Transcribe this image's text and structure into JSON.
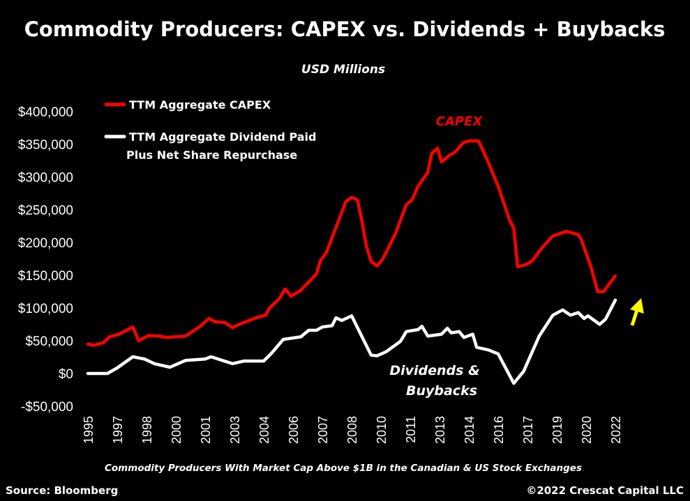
{
  "chart_data": {
    "type": "line",
    "title": "Commodity Producers: CAPEX vs. Dividends + Buybacks",
    "subtitle": "USD Millions",
    "footnote": "Commodity Producers With Market Cap Above $1B in the Canadian & US Stock Exchanges",
    "source": "Source: Bloomberg",
    "copyright": "©2022 Crescat Capital LLC",
    "xlim": [
      1995,
      2022
    ],
    "ylim": [
      -50000,
      400000
    ],
    "grid": false,
    "legend_placement": "top-left",
    "yticks": [
      {
        "value": 400000,
        "label": "$400,000"
      },
      {
        "value": 350000,
        "label": "$350,000"
      },
      {
        "value": 300000,
        "label": "$300,000"
      },
      {
        "value": 250000,
        "label": "$250,000"
      },
      {
        "value": 200000,
        "label": "$200,000"
      },
      {
        "value": 150000,
        "label": "$150,000"
      },
      {
        "value": 100000,
        "label": "$100,000"
      },
      {
        "value": 50000,
        "label": "$50,000"
      },
      {
        "value": 0,
        "label": "$0"
      },
      {
        "value": -50000,
        "label": "-$50,000"
      }
    ],
    "xtick_labels": [
      "1995",
      "1997",
      "1998",
      "2000",
      "2001",
      "2003",
      "2004",
      "2006",
      "2007",
      "2008",
      "2010",
      "2011",
      "2013",
      "2014",
      "2016",
      "2017",
      "2019",
      "2020",
      "2022"
    ],
    "annotations": {
      "capex": "CAPEX",
      "dividends_line1": "Dividends &",
      "dividends_line2": "Buybacks"
    },
    "arrow_color": "#FFFF00",
    "series": [
      {
        "name": "TTM Aggregate CAPEX",
        "color": "#FF0000",
        "x": [
          1995.0,
          1995.3,
          1995.8,
          1996.1,
          1996.6,
          1997.3,
          1997.6,
          1998.1,
          1998.7,
          1999.0,
          2000.0,
          2000.75,
          2001.2,
          2001.5,
          2002.0,
          2002.4,
          2002.75,
          2003.6,
          2004.1,
          2004.3,
          2004.8,
          2005.1,
          2005.4,
          2005.9,
          2006.7,
          2006.9,
          2007.2,
          2008.2,
          2008.5,
          2008.8,
          2009.0,
          2009.25,
          2009.5,
          2009.8,
          2010.1,
          2010.75,
          2011.3,
          2011.6,
          2011.9,
          2012.4,
          2012.6,
          2012.9,
          2013.1,
          2013.5,
          2013.8,
          2014.2,
          2014.5,
          2015.0,
          2015.5,
          2016.0,
          2016.6,
          2016.8,
          2017.0,
          2017.4,
          2017.75,
          2018.25,
          2018.8,
          2019.5,
          2020.1,
          2020.25,
          2020.75,
          2021.1,
          2021.4,
          2022.0
        ],
        "values": [
          45000,
          43000,
          47000,
          56000,
          60000,
          71000,
          50000,
          58000,
          57000,
          55000,
          57000,
          72000,
          84000,
          79000,
          78000,
          70000,
          75000,
          85000,
          89000,
          100000,
          114000,
          129000,
          118000,
          127000,
          152000,
          172000,
          184000,
          262000,
          269000,
          265000,
          237000,
          195000,
          171000,
          164000,
          175000,
          214000,
          258000,
          265000,
          286000,
          307000,
          336000,
          344000,
          323000,
          333000,
          338000,
          352000,
          355000,
          355000,
          322000,
          286000,
          233000,
          222000,
          163000,
          166000,
          172000,
          192000,
          210000,
          217000,
          212000,
          205000,
          163000,
          125000,
          125000,
          149000
        ]
      },
      {
        "name": "TTM Aggregate Dividend Paid Plus Net Share Repurchase",
        "name_line1": "TTM Aggregate Dividend Paid",
        "name_line2": "Plus Net Share Repurchase",
        "color": "#FFFFFF",
        "x": [
          1995.0,
          1996.0,
          1996.5,
          1997.3,
          1997.9,
          1998.4,
          1999.2,
          2000.0,
          2001.0,
          2001.3,
          2002.4,
          2003.0,
          2004.0,
          2004.4,
          2005.0,
          2005.9,
          2006.3,
          2006.7,
          2007.0,
          2007.5,
          2007.7,
          2008.0,
          2008.5,
          2008.8,
          2009.5,
          2009.8,
          2010.25,
          2011.0,
          2011.3,
          2011.9,
          2012.1,
          2012.4,
          2013.1,
          2013.4,
          2013.6,
          2014.0,
          2014.25,
          2014.7,
          2014.9,
          2015.5,
          2016.0,
          2016.8,
          2017.3,
          2018.1,
          2018.8,
          2019.3,
          2019.7,
          2020.1,
          2020.4,
          2020.6,
          2021.2,
          2021.5,
          2022.0
        ],
        "values": [
          0,
          0,
          8500,
          25500,
          22000,
          15000,
          9600,
          20000,
          22000,
          25500,
          15000,
          19000,
          19000,
          31000,
          52000,
          56000,
          66000,
          66000,
          71000,
          73000,
          85000,
          81000,
          88000,
          70000,
          28000,
          27000,
          33000,
          49000,
          64000,
          67000,
          72000,
          57000,
          60000,
          69000,
          62000,
          64000,
          55000,
          60000,
          40000,
          36000,
          30000,
          -15000,
          3000,
          57000,
          89000,
          97000,
          89000,
          93000,
          84000,
          88000,
          75000,
          83000,
          112000
        ]
      }
    ]
  }
}
